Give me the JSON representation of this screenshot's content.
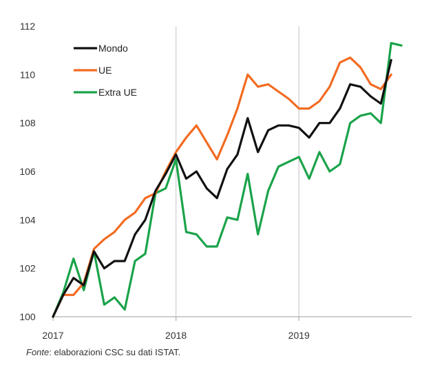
{
  "chart_data": {
    "type": "line",
    "title": "",
    "xlabel": "",
    "ylabel": "",
    "ylim": [
      100,
      112
    ],
    "yticks": [
      100,
      102,
      104,
      106,
      108,
      110,
      112
    ],
    "xlim": [
      0,
      35
    ],
    "xticks": [
      {
        "x": 0,
        "label": "2017"
      },
      {
        "x": 12,
        "label": "2018"
      },
      {
        "x": 24,
        "label": "2019"
      }
    ],
    "grid": "vertical at year boundaries",
    "legend": "top-left",
    "series": [
      {
        "name": "Mondo",
        "color": "#111111",
        "x": [
          0,
          1,
          2,
          3,
          4,
          5,
          6,
          7,
          8,
          9,
          10,
          11,
          12,
          13,
          14,
          15,
          16,
          17,
          18,
          19,
          20,
          21,
          22,
          23,
          24,
          25,
          26,
          27,
          28,
          29,
          30,
          31,
          32,
          33,
          34
        ],
        "values": [
          100.0,
          100.9,
          101.6,
          101.3,
          102.7,
          102.0,
          102.3,
          102.3,
          103.4,
          104.0,
          105.2,
          105.9,
          106.7,
          105.7,
          106.0,
          105.3,
          104.9,
          106.1,
          106.7,
          108.2,
          106.8,
          107.7,
          107.9,
          107.9,
          107.8,
          107.4,
          108.0,
          108.0,
          108.6,
          109.6,
          109.5,
          109.1,
          108.8,
          110.6,
          null
        ]
      },
      {
        "name": "UE",
        "color": "#f26b21",
        "x": [
          0,
          1,
          2,
          3,
          4,
          5,
          6,
          7,
          8,
          9,
          10,
          11,
          12,
          13,
          14,
          15,
          16,
          17,
          18,
          19,
          20,
          21,
          22,
          23,
          24,
          25,
          26,
          27,
          28,
          29,
          30,
          31,
          32,
          33,
          34
        ],
        "values": [
          100.0,
          100.9,
          100.9,
          101.4,
          102.8,
          103.2,
          103.5,
          104.0,
          104.3,
          104.9,
          105.1,
          106.0,
          106.8,
          107.4,
          107.9,
          107.2,
          106.5,
          107.5,
          108.6,
          110.0,
          109.5,
          109.6,
          109.3,
          109.0,
          108.6,
          108.6,
          108.9,
          109.5,
          110.5,
          110.7,
          110.3,
          109.6,
          109.4,
          110.0,
          null
        ]
      },
      {
        "name": "Extra UE",
        "color": "#1aa34a",
        "x": [
          0,
          1,
          2,
          3,
          4,
          5,
          6,
          7,
          8,
          9,
          10,
          11,
          12,
          13,
          14,
          15,
          16,
          17,
          18,
          19,
          20,
          21,
          22,
          23,
          24,
          25,
          26,
          27,
          28,
          29,
          30,
          31,
          32,
          33,
          34
        ],
        "values": [
          100.0,
          101.0,
          102.4,
          101.1,
          102.7,
          100.5,
          100.8,
          100.3,
          102.3,
          102.6,
          105.1,
          105.3,
          106.5,
          103.5,
          103.4,
          102.9,
          102.9,
          104.1,
          104.0,
          105.9,
          103.4,
          105.2,
          106.2,
          106.4,
          106.6,
          105.7,
          106.8,
          106.0,
          106.3,
          108.0,
          108.3,
          108.4,
          108.0,
          111.3,
          111.2
        ]
      }
    ]
  },
  "source": {
    "prefix": "Fonte",
    "text": ": elaborazioni CSC su dati ISTAT."
  }
}
